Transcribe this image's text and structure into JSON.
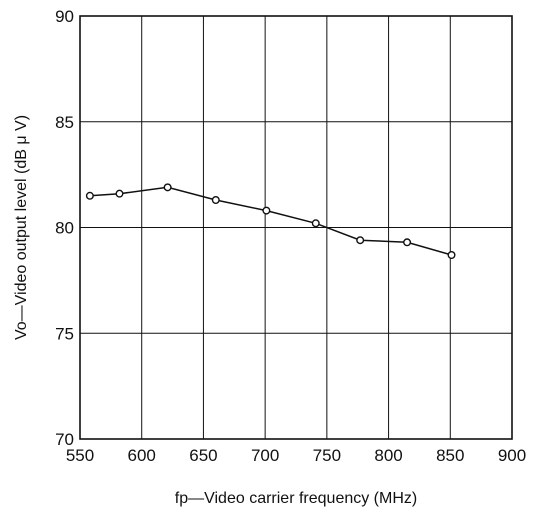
{
  "chart_data": {
    "type": "line",
    "title": "",
    "xlabel": "fp—Video carrier frequency (MHz)",
    "ylabel": "Vo—Video output level (dB μ V)",
    "xlim": [
      550,
      900
    ],
    "ylim": [
      70,
      90
    ],
    "x_ticks": [
      "550",
      "600",
      "650",
      "700",
      "750",
      "800",
      "850",
      "900"
    ],
    "y_ticks": [
      "70",
      "75",
      "80",
      "85",
      "90"
    ],
    "grid": true,
    "series": [
      {
        "x": [
          558,
          582,
          621,
          660,
          701,
          741,
          777,
          815,
          851
        ],
        "y": [
          81.5,
          81.6,
          81.9,
          81.3,
          80.8,
          80.2,
          79.4,
          79.3,
          78.7
        ]
      }
    ]
  }
}
